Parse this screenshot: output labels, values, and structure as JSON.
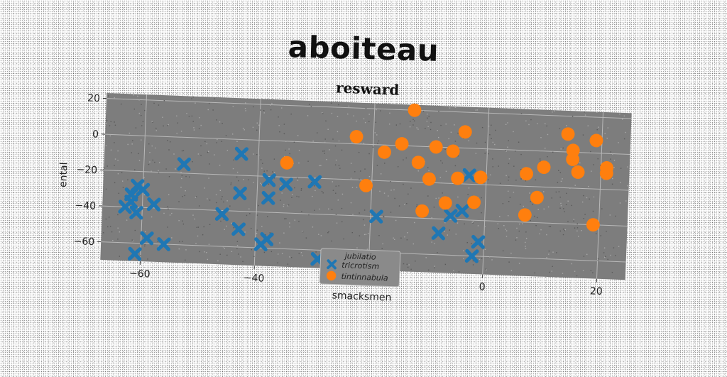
{
  "figure": {
    "suptitle": "aboiteau"
  },
  "chart_data": {
    "type": "scatter",
    "title": "resward",
    "xlabel": "smacksmen",
    "ylabel": "ental",
    "xlim": [
      -67,
      25
    ],
    "ylim": [
      -70,
      23
    ],
    "xticks": [
      -60,
      -40,
      -20,
      0,
      20
    ],
    "yticks": [
      20,
      0,
      -20,
      -40,
      -60
    ],
    "grid": true,
    "legend": {
      "title": "jubilatio",
      "placement": "lower-center"
    },
    "series": [
      {
        "name": "tricrotism",
        "marker": "x",
        "color": "#1f77b4",
        "points": [
          [
            -62,
            -37
          ],
          [
            -63,
            -40
          ],
          [
            -61,
            -43
          ],
          [
            -62,
            -33
          ],
          [
            -60,
            -30
          ],
          [
            -61,
            -28
          ],
          [
            -58,
            -38
          ],
          [
            -59,
            -57
          ],
          [
            -56,
            -60
          ],
          [
            -61,
            -66
          ],
          [
            -53,
            -15
          ],
          [
            -46,
            -42
          ],
          [
            -43,
            -50
          ],
          [
            -43,
            -30
          ],
          [
            -43,
            -8
          ],
          [
            -38,
            -22
          ],
          [
            -38,
            -32
          ],
          [
            -35,
            -24
          ],
          [
            -38,
            -55
          ],
          [
            -39,
            -58
          ],
          [
            -30,
            -22
          ],
          [
            -29,
            -65
          ],
          [
            -19,
            -40
          ],
          [
            -8,
            -48
          ],
          [
            -6,
            -38
          ],
          [
            -4,
            -35
          ],
          [
            -3,
            -15
          ],
          [
            -2,
            -60
          ],
          [
            -1,
            -52
          ]
        ]
      },
      {
        "name": "tintinnabula",
        "marker": "o",
        "color": "#ff7f0e",
        "points": [
          [
            -35,
            -12
          ],
          [
            -23,
            4
          ],
          [
            -21,
            -23
          ],
          [
            -18,
            -4
          ],
          [
            -15,
            1
          ],
          [
            -13,
            20
          ],
          [
            -12,
            -9
          ],
          [
            -11,
            -36
          ],
          [
            -10,
            -18
          ],
          [
            -9,
            0
          ],
          [
            -7,
            -31
          ],
          [
            -6,
            -2
          ],
          [
            -5,
            -17
          ],
          [
            -4,
            9
          ],
          [
            -2,
            -30
          ],
          [
            -1,
            -16
          ],
          [
            7,
            -13
          ],
          [
            7,
            -36
          ],
          [
            9,
            -26
          ],
          [
            10,
            -9
          ],
          [
            14,
            10
          ],
          [
            15,
            1
          ],
          [
            15,
            -4
          ],
          [
            16,
            -11
          ],
          [
            19,
            7
          ],
          [
            19,
            -40
          ],
          [
            21,
            -11
          ],
          [
            21,
            -8
          ]
        ]
      }
    ]
  }
}
